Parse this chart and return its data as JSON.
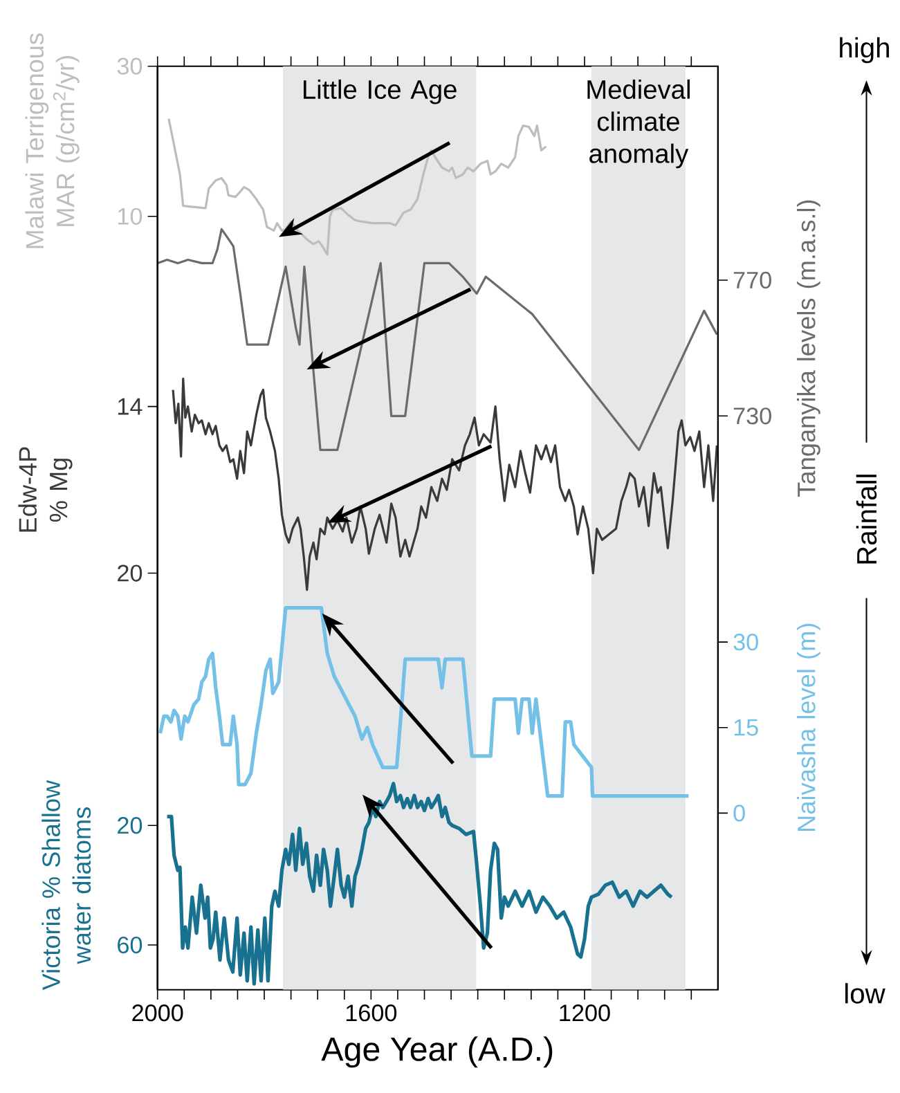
{
  "chart_data": [
    {
      "type": "line",
      "xlabel": "Age Year (A.D.)",
      "xlim": [
        2000,
        950
      ],
      "xticks": [
        2000,
        {
          "value": 1950,
          "label": null
        },
        {
          "value": 1900,
          "label": null
        },
        {
          "value": 1850,
          "label": null
        },
        {
          "value": 1800,
          "label": null
        },
        {
          "value": 1750,
          "label": null
        },
        {
          "value": 1700,
          "label": null
        },
        {
          "value": 1650,
          "label": null
        },
        1600,
        {
          "value": 1550,
          "label": null
        },
        {
          "value": 1500,
          "label": null
        },
        {
          "value": 1450,
          "label": null
        },
        {
          "value": 1400,
          "label": null
        },
        {
          "value": 1350,
          "label": null
        },
        {
          "value": 1300,
          "label": null
        },
        {
          "value": 1250,
          "label": null
        },
        1200,
        {
          "value": 1150,
          "label": null
        },
        {
          "value": 1100,
          "label": null
        },
        {
          "value": 1050,
          "label": null
        },
        {
          "value": 1000,
          "label": null
        }
      ],
      "ylabel": "Malawi Terrigenous MAR (g/cm$^{2}$/yr)",
      "ylim": [
        -93,
        30
      ],
      "yticks": [
        30,
        10
      ],
      "y2label": "Tanganyika levels (m.a.s.l)",
      "y2lim": [
        561,
        833
      ],
      "y2ticks": [
        770,
        730
      ],
      "y3label": "Edw-4P % Mg",
      "y3lim": [
        35,
        1.75
      ],
      "y3ticks": [
        14,
        20
      ],
      "bands": [
        {
          "axis": "x",
          "from": 1765,
          "to": 1403,
          "label": "Little Ice Age",
          "color": "#e6e7e9"
        },
        {
          "axis": "x",
          "from": 1187,
          "to": 1011,
          "label": "Medieval climate anomaly",
          "color": "#e6e7e9"
        }
      ],
      "annotations": [
        "high",
        "low",
        "Rainfall"
      ],
      "series": [
        {
          "axis": "y",
          "color": "#bdbdbd",
          "x": [
            1979,
            1971,
            1958,
            1952,
            1910,
            1904,
            1891,
            1880,
            1871,
            1867,
            1854,
            1845,
            1838,
            1828,
            1815,
            1802,
            1795,
            1782,
            1776,
            1767,
            1760,
            1750,
            1737,
            1721,
            1708,
            1698,
            1689,
            1682,
            1677,
            1672,
            1656,
            1643,
            1630,
            1617,
            1597,
            1565,
            1554,
            1539,
            1526,
            1513,
            1502,
            1493,
            1487,
            1480,
            1467,
            1454,
            1448,
            1441,
            1428,
            1419,
            1408,
            1395,
            1382,
            1376,
            1367,
            1356,
            1343,
            1330,
            1324,
            1315,
            1304,
            1294,
            1289,
            1281,
            1272
          ],
          "values": [
            23.0,
            20.2,
            15.6,
            11.4,
            11.1,
            13.7,
            14.8,
            15.1,
            14.2,
            12.8,
            12.6,
            13.3,
            13.9,
            13.5,
            12.3,
            10.9,
            8.6,
            8.1,
            9.1,
            8.1,
            8.3,
            9.3,
            8.1,
            7.0,
            6.3,
            6.7,
            5.8,
            4.9,
            10.0,
            10.9,
            11.1,
            10.2,
            9.5,
            9.3,
            9.1,
            9.1,
            8.8,
            10.5,
            10.9,
            12.3,
            15.6,
            17.9,
            18.8,
            17.9,
            16.5,
            16.0,
            16.5,
            15.1,
            15.6,
            16.5,
            16.0,
            17.0,
            17.4,
            15.6,
            16.0,
            17.0,
            16.5,
            17.9,
            20.7,
            22.1,
            21.9,
            20.7,
            22.1,
            18.8,
            19.3
          ]
        },
        {
          "axis": "y2",
          "color": "#6b6b6b",
          "x": [
            2000,
            1982,
            1962,
            1943,
            1917,
            1897,
            1888,
            1880,
            1871,
            1858,
            1845,
            1832,
            1793,
            1760,
            1741,
            1734,
            1725,
            1715,
            1695,
            1663,
            1582,
            1562,
            1536,
            1500,
            1454,
            1428,
            1402,
            1385,
            1298,
            1098,
            976,
            952
          ],
          "values": [
            775,
            776,
            775,
            776,
            775,
            775,
            779,
            785,
            783,
            780,
            766,
            751,
            751,
            774,
            756,
            751,
            774,
            756,
            720,
            720,
            775,
            730,
            730,
            775,
            775,
            771,
            766,
            771,
            760,
            720,
            761,
            754
          ]
        },
        {
          "axis": "y3",
          "color": "#3a3a3a",
          "x": [
            1971,
            1966,
            1961,
            1956,
            1952,
            1948,
            1943,
            1936,
            1930,
            1923,
            1917,
            1910,
            1904,
            1897,
            1891,
            1884,
            1878,
            1871,
            1864,
            1858,
            1851,
            1845,
            1838,
            1832,
            1825,
            1815,
            1807,
            1802,
            1797,
            1789,
            1780,
            1773,
            1767,
            1760,
            1754,
            1747,
            1737,
            1732,
            1726,
            1720,
            1715,
            1708,
            1702,
            1695,
            1687,
            1682,
            1672,
            1663,
            1653,
            1646,
            1636,
            1627,
            1620,
            1610,
            1604,
            1593,
            1584,
            1571,
            1562,
            1554,
            1545,
            1536,
            1528,
            1519,
            1513,
            1506,
            1497,
            1487,
            1476,
            1467,
            1458,
            1448,
            1435,
            1424,
            1415,
            1406,
            1398,
            1389,
            1376,
            1367,
            1359,
            1350,
            1341,
            1330,
            1320,
            1311,
            1302,
            1291,
            1281,
            1272,
            1263,
            1255,
            1246,
            1236,
            1229,
            1220,
            1213,
            1203,
            1193,
            1184,
            1177,
            1167,
            1154,
            1141,
            1131,
            1122,
            1115,
            1106,
            1098,
            1089,
            1080,
            1070,
            1063,
            1057,
            1050,
            1044,
            1035,
            1024,
            1018,
            1011,
            1002,
            994,
            985,
            976,
            968,
            959,
            952
          ],
          "values": [
            13.4,
            14.6,
            13.9,
            15.8,
            13.0,
            14.4,
            14.0,
            14.9,
            14.3,
            14.6,
            14.5,
            15.0,
            14.6,
            15.0,
            14.7,
            15.4,
            15.6,
            15.4,
            16.0,
            15.9,
            16.6,
            15.6,
            16.4,
            14.9,
            15.4,
            14.3,
            13.6,
            13.4,
            14.4,
            14.9,
            15.6,
            16.6,
            17.9,
            18.6,
            18.9,
            18.4,
            18.0,
            18.4,
            19.4,
            20.6,
            19.4,
            18.9,
            19.5,
            18.4,
            18.6,
            18.0,
            18.4,
            18.1,
            18.5,
            18.0,
            18.9,
            18.4,
            17.6,
            18.4,
            19.3,
            18.4,
            17.9,
            18.9,
            17.5,
            18.0,
            19.4,
            18.8,
            19.4,
            18.8,
            18.4,
            17.6,
            18.0,
            16.9,
            17.4,
            16.6,
            17.0,
            15.9,
            16.3,
            15.4,
            15.0,
            14.4,
            15.4,
            15.0,
            15.3,
            14.0,
            15.9,
            17.4,
            16.1,
            16.9,
            15.6,
            16.4,
            17.1,
            15.4,
            15.9,
            15.4,
            16.0,
            15.4,
            16.9,
            17.4,
            17.0,
            17.6,
            18.6,
            17.6,
            18.4,
            20.0,
            18.4,
            18.8,
            18.6,
            18.4,
            17.4,
            16.9,
            16.4,
            16.6,
            17.6,
            16.9,
            18.3,
            16.4,
            17.1,
            16.9,
            18.1,
            19.1,
            17.4,
            14.9,
            14.5,
            15.4,
            15.1,
            15.6,
            14.9,
            16.9,
            15.4,
            17.4,
            15.4
          ]
        }
      ]
    },
    {
      "type": "line",
      "tick_labels": "y",
      "xlim": [
        2000,
        950
      ],
      "ylabel": "Victoria % Shallow water diatoms",
      "ylim": [
        75,
        -234
      ],
      "yticks": [
        20,
        60
      ],
      "y2label": "Naivasha level (m)",
      "y2lim": [
        -31,
        131
      ],
      "y2ticks": [
        30,
        15,
        0
      ],
      "series": [
        {
          "axis": "y2",
          "color": "#74c0e6",
          "x": [
            1995,
            1988,
            1982,
            1975,
            1969,
            1962,
            1956,
            1949,
            1943,
            1932,
            1923,
            1917,
            1910,
            1904,
            1897,
            1891,
            1884,
            1878,
            1864,
            1858,
            1851,
            1848,
            1836,
            1825,
            1815,
            1806,
            1797,
            1789,
            1784,
            1773,
            1760,
            1693,
            1682,
            1669,
            1630,
            1617,
            1607,
            1597,
            1578,
            1552,
            1545,
            1536,
            1474,
            1467,
            1461,
            1428,
            1411,
            1376,
            1369,
            1330,
            1324,
            1317,
            1304,
            1298,
            1291,
            1269,
            1242,
            1236,
            1226,
            1220,
            1187,
            1185,
            1005
          ],
          "values": [
            14,
            17,
            17,
            16,
            18,
            17,
            13,
            17,
            16,
            19,
            20,
            23,
            24,
            27,
            28,
            22,
            17,
            12,
            12,
            17,
            12,
            5,
            5,
            7,
            14,
            19,
            25,
            27,
            21,
            23,
            36,
            36,
            28,
            24,
            17,
            13,
            15,
            12,
            8,
            8,
            16,
            27,
            27,
            22,
            27,
            27,
            10,
            10,
            20,
            20,
            14,
            20,
            20,
            14,
            20,
            3,
            3,
            16,
            16,
            12,
            8,
            3,
            3
          ]
        },
        {
          "axis": "y",
          "color": "#17718f",
          "x": [
            1982,
            1974,
            1969,
            1962,
            1958,
            1953,
            1948,
            1943,
            1935,
            1927,
            1919,
            1911,
            1906,
            1901,
            1896,
            1891,
            1883,
            1875,
            1867,
            1859,
            1851,
            1845,
            1838,
            1832,
            1825,
            1819,
            1812,
            1806,
            1799,
            1793,
            1786,
            1780,
            1773,
            1767,
            1760,
            1754,
            1747,
            1741,
            1734,
            1728,
            1721,
            1715,
            1708,
            1702,
            1695,
            1689,
            1682,
            1676,
            1669,
            1663,
            1656,
            1650,
            1643,
            1636,
            1630,
            1623,
            1617,
            1610,
            1604,
            1597,
            1591,
            1584,
            1578,
            1571,
            1565,
            1558,
            1552,
            1545,
            1539,
            1532,
            1526,
            1519,
            1513,
            1506,
            1500,
            1493,
            1487,
            1480,
            1474,
            1467,
            1461,
            1454,
            1448,
            1435,
            1422,
            1408,
            1402,
            1395,
            1389,
            1382,
            1376,
            1369,
            1363,
            1356,
            1350,
            1343,
            1330,
            1317,
            1304,
            1291,
            1278,
            1265,
            1252,
            1239,
            1226,
            1213,
            1207,
            1200,
            1193,
            1187,
            1174,
            1161,
            1148,
            1135,
            1122,
            1109,
            1096,
            1083,
            1070,
            1057,
            1044,
            1037
          ],
          "values": [
            17,
            17,
            30,
            35,
            34,
            61,
            54,
            61,
            44,
            56,
            40,
            51,
            44,
            61,
            58,
            49,
            65,
            51,
            65,
            69,
            51,
            70,
            56,
            72,
            54,
            73,
            55,
            72,
            51,
            72,
            47,
            42,
            47,
            35,
            28,
            33,
            23,
            35,
            21,
            33,
            26,
            37,
            42,
            30,
            40,
            28,
            35,
            47,
            37,
            28,
            40,
            44,
            37,
            47,
            37,
            33,
            28,
            21,
            19,
            14,
            17,
            12,
            14,
            12,
            10,
            6,
            12,
            10,
            14,
            11,
            14,
            10,
            14,
            12,
            15,
            11,
            14,
            12,
            10,
            17,
            14,
            19,
            20,
            21,
            23,
            22,
            33,
            47,
            61,
            56,
            35,
            26,
            28,
            51,
            44,
            47,
            42,
            47,
            42,
            49,
            44,
            47,
            51,
            49,
            54,
            63,
            64,
            58,
            47,
            44,
            43,
            40,
            39,
            44,
            42,
            47,
            42,
            44,
            42,
            40,
            43,
            44
          ]
        }
      ]
    }
  ]
}
